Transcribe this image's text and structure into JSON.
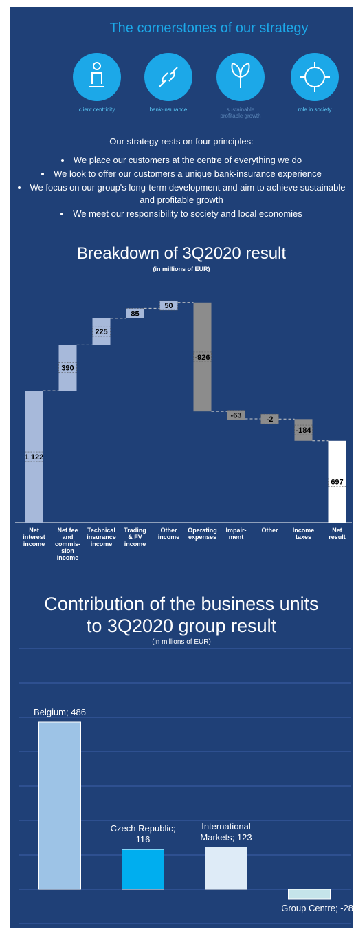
{
  "strategy": {
    "title": "The cornerstones of our strategy",
    "icons": [
      "client centricity",
      "bank-insurance",
      "sustainable\nprofitable growth",
      "role in society"
    ],
    "intro": "Our strategy rests on four principles:",
    "bullets": [
      "We place our customers at the centre of everything we do",
      "We look to offer our customers a unique bank-insurance experience",
      "We focus on our group's long-term development and aim to achieve sustainable and profitable growth",
      "We meet our responsibility to society and local economies"
    ]
  },
  "chart_data": [
    {
      "type": "waterfall",
      "title": "Breakdown of 3Q2020 result",
      "subtitle": "(in millions of EUR)",
      "categories": [
        "Net\ninterest\nincome",
        "Net fee\nand\ncommis-\nsion\nincome",
        "Technical\ninsurance\nincome",
        "Trading\n& FV\nincome",
        "Other\nincome",
        "Operating\nexpenses",
        "Impair-\nment",
        "Other",
        "Income\ntaxes",
        "Net\nresult"
      ],
      "values": [
        1122,
        390,
        225,
        85,
        50,
        -926,
        -63,
        -2,
        -184,
        697
      ],
      "value_labels": [
        "1 122",
        "390",
        "225",
        "85",
        "50",
        "-926",
        "-63",
        "-2",
        "-184",
        "697"
      ],
      "is_total": [
        false,
        false,
        false,
        false,
        false,
        false,
        false,
        false,
        false,
        true
      ],
      "colors": [
        "#a7b9da",
        "#a7b9da",
        "#a7b9da",
        "#a7b9da",
        "#a7b9da",
        "#8c8c8c",
        "#8c8c8c",
        "#8c8c8c",
        "#8c8c8c",
        "#ffffff"
      ],
      "ylim": [
        0,
        1900
      ]
    },
    {
      "type": "bar",
      "title": "Contribution of the business units\nto 3Q2020 group result",
      "subtitle": "(in millions of EUR)",
      "values": [
        486,
        116,
        123,
        -28
      ],
      "value_labels": [
        "Belgium; 486",
        "Czech Republic;\n116",
        "International\nMarkets; 123",
        "Group Centre; -28"
      ],
      "colors": [
        "#9dc3e6",
        "#00aeef",
        "#deebf7",
        "#c5e4ea"
      ],
      "ylim": [
        -100,
        700
      ],
      "yticks": [
        -100,
        0,
        100,
        200,
        300,
        400,
        500,
        600,
        700
      ],
      "grid": true
    }
  ]
}
